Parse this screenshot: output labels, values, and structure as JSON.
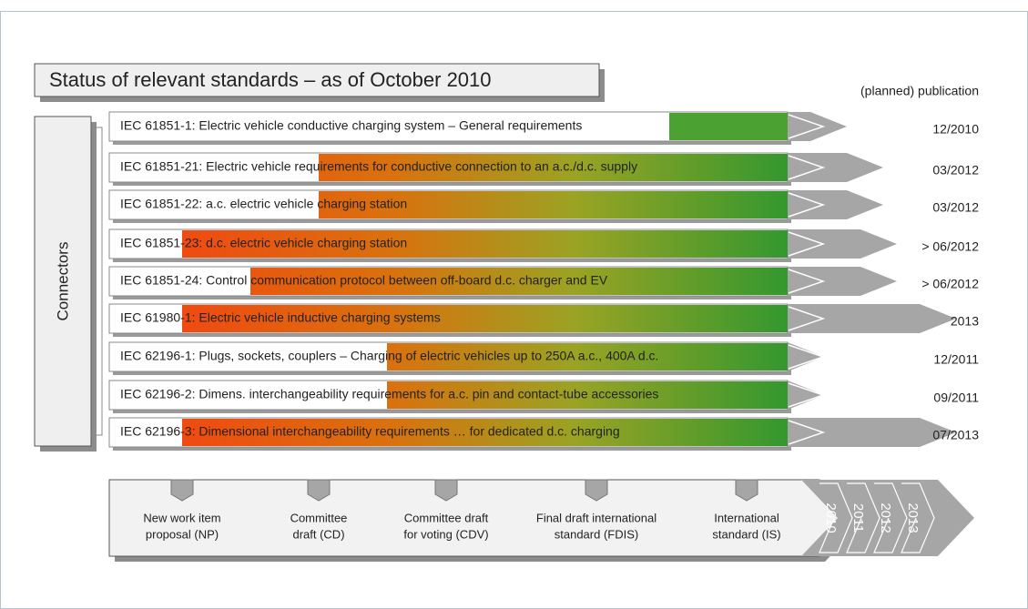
{
  "title": "Status of relevant standards – as of October 2010",
  "publication_header": "(planned) publication",
  "group_label": "Connectors",
  "rows": [
    {
      "standard": "IEC 61851-1: Electric vehicle conductive charging system – General requirements",
      "date": "12/2010"
    },
    {
      "standard": "IEC 61851-21: Electric vehicle requirements for conductive connection to an a.c./d.c. supply",
      "date": "03/2012"
    },
    {
      "standard": "IEC 61851-22: a.c. electric vehicle charging station",
      "date": "03/2012"
    },
    {
      "standard": "IEC 61851-23: d.c. electric vehicle charging station",
      "date": "> 06/2012"
    },
    {
      "standard": "IEC 61851-24: Control communication protocol between off-board d.c. charger and EV",
      "date": "> 06/2012"
    },
    {
      "standard": "IEC 61980-1: Electric vehicle inductive charging systems",
      "date": "2013"
    },
    {
      "standard": "IEC 62196-1: Plugs, sockets, couplers – Charging of electric vehicles up to 250A a.c., 400A d.c.",
      "date": "12/2011"
    },
    {
      "standard": "IEC 62196-2: Dimens. interchangeability requirements for a.c. pin and contact-tube accessories",
      "date": "09/2011"
    },
    {
      "standard": "IEC 62196-3: Dimensional interchangeability requirements … for dedicated d.c. charging",
      "date": "07/2013"
    }
  ],
  "stages": [
    {
      "lines": [
        "New work item",
        "proposal (NP)"
      ]
    },
    {
      "lines": [
        "Committee",
        "draft (CD)"
      ]
    },
    {
      "lines": [
        "Committee draft",
        "for voting (CDV)"
      ]
    },
    {
      "lines": [
        "Final draft international",
        "standard (FDIS)"
      ]
    },
    {
      "lines": [
        "International",
        "standard (IS)"
      ]
    }
  ],
  "years": [
    "2010",
    "2011",
    "2012",
    "2013"
  ]
}
